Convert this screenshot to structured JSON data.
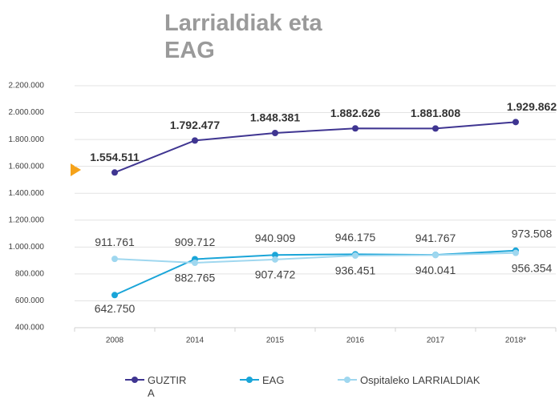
{
  "chart_data": {
    "type": "line",
    "title": "Larrialdiak eta EAG",
    "categories": [
      "2008",
      "2014",
      "2015",
      "2016",
      "2017",
      "2018*"
    ],
    "ylim": [
      400000,
      2200000
    ],
    "yticks": [
      {
        "value": 400000,
        "label": "400.000"
      },
      {
        "value": 600000,
        "label": "600.000"
      },
      {
        "value": 800000,
        "label": "800.000"
      },
      {
        "value": 1000000,
        "label": "1.000.000"
      },
      {
        "value": 1200000,
        "label": "1.200.000"
      },
      {
        "value": 1400000,
        "label": "1.400.000"
      },
      {
        "value": 1600000,
        "label": "1.600.000"
      },
      {
        "value": 1800000,
        "label": "1.800.000"
      },
      {
        "value": 2000000,
        "label": "2.000.000"
      },
      {
        "value": 2200000,
        "label": "2.200.000"
      }
    ],
    "grid": true,
    "series": [
      {
        "name": "GUZTIRA",
        "color": "#3f3591",
        "values": [
          1554511,
          1792477,
          1848381,
          1882626,
          1881808,
          1929862
        ],
        "value_labels": [
          "1.554.511",
          "1.792.477",
          "1.848.381",
          "1.882.626",
          "1.881.808",
          "1.929.862"
        ]
      },
      {
        "name": "EAG",
        "color": "#1aa5d8",
        "values": [
          642750,
          909712,
          940909,
          946175,
          941767,
          973508
        ],
        "value_labels": [
          "642.750",
          "909.712",
          "940.909",
          "946.175",
          "941.767",
          "973.508"
        ]
      },
      {
        "name": "Ospitaleko LARRIALDIAK",
        "color": "#9fd7ef",
        "values": [
          911761,
          882765,
          907472,
          936451,
          940041,
          956354
        ],
        "value_labels": [
          "911.761",
          "882.765",
          "907.472",
          "936.451",
          "940.041",
          "956.354"
        ]
      }
    ]
  }
}
